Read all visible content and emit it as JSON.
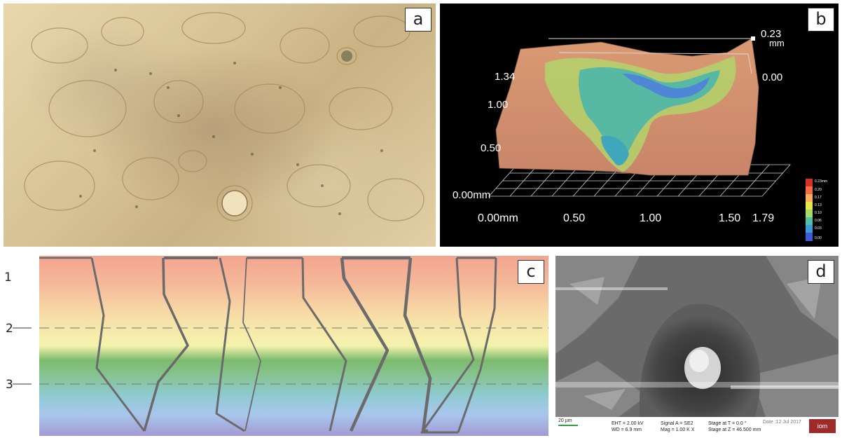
{
  "panels": {
    "a": {
      "tag": "a"
    },
    "b": {
      "tag": "b",
      "z_labels": {
        "top": "0.23",
        "top_unit": "mm",
        "right_zero": "0.00"
      },
      "y_labels": [
        "1.34",
        "1.00",
        "0.50",
        "0.00mm"
      ],
      "x_labels": [
        "0.00mm",
        "0.50",
        "1.00",
        "1.50",
        "1.79"
      ],
      "colorbar": {
        "labels": [
          "0.23mm",
          "0.20",
          "0.17",
          "0.13",
          "0.10",
          "0.06",
          "0.03",
          "0.00"
        ],
        "colors": [
          "#d73027",
          "#f46d43",
          "#fdae61",
          "#e6e84a",
          "#a6d96a",
          "#4fc1a6",
          "#3f9bd8",
          "#3b5bd6"
        ]
      }
    },
    "c": {
      "tag": "c",
      "levels": [
        "1",
        "2",
        "3"
      ]
    },
    "d": {
      "tag": "d",
      "scale_bar": "20 µm",
      "info": {
        "eht": "EHT = 2.00 kV",
        "wd": "WD = 6.9 mm",
        "signal": "Signal A = SE2",
        "mag": "Mag = 1.00 K X",
        "stage_t": "Stage at T = 0.0 °",
        "stage_z": "Stage at Z = 46.500 mm",
        "date": "Date :12 Jul 2017"
      },
      "logo": "iom"
    }
  }
}
